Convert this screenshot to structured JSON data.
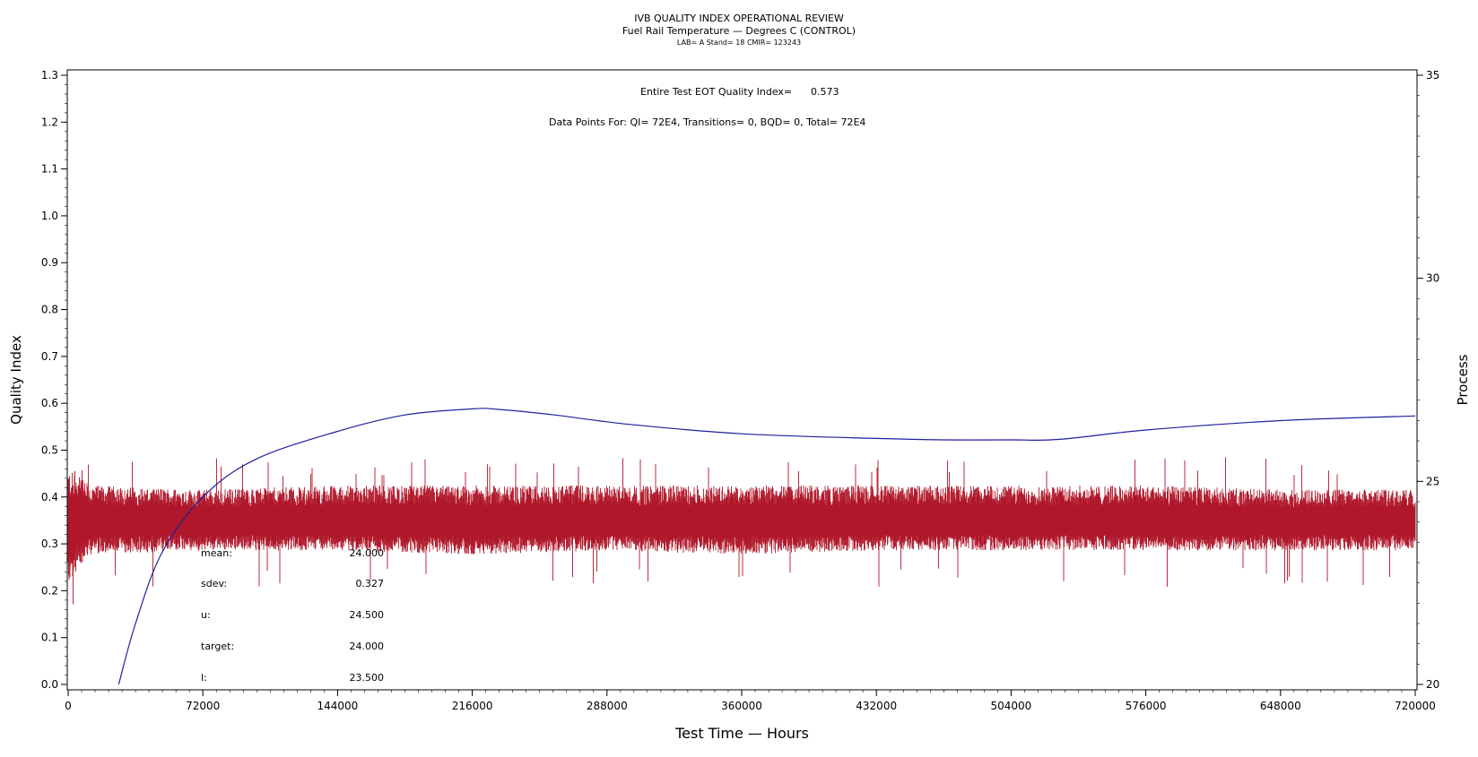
{
  "header": {
    "title": "IVB QUALITY INDEX OPERATIONAL REVIEW",
    "subtitle": "Fuel Rail Temperature — Degrees C (CONTROL)",
    "subsubtitle": "LAB= A Stand= 18 CMIR= 123243"
  },
  "annotations": {
    "eot_label": "Entire Test EOT Quality Index=",
    "eot_value": "0.573",
    "data_points": "Data Points For: QI=  72E4, Transitions=     0, BQD=     0, Total=  72E4"
  },
  "stats": [
    {
      "label": "mean:",
      "value": "24.000"
    },
    {
      "label": "sdev:",
      "value": "0.327"
    },
    {
      "label": "u:",
      "value": "24.500"
    },
    {
      "label": "target:",
      "value": "24.000"
    },
    {
      "label": "l:",
      "value": "23.500"
    }
  ],
  "chart_data": {
    "type": "line",
    "xlabel": "Test Time — Hours",
    "ylabel": "Quality Index",
    "y2label": "Process",
    "xlim": [
      0,
      720000
    ],
    "ylim": [
      0.0,
      1.3
    ],
    "y2lim": [
      20,
      35
    ],
    "xticks": [
      0,
      72000,
      144000,
      216000,
      288000,
      360000,
      432000,
      504000,
      576000,
      648000,
      720000
    ],
    "yticks": [
      0.0,
      0.1,
      0.2,
      0.3,
      0.4,
      0.5,
      0.6,
      0.7,
      0.8,
      0.9,
      1.0,
      1.1,
      1.2,
      1.3
    ],
    "y2ticks": [
      20,
      25,
      30,
      35
    ],
    "series": [
      {
        "axis": "left",
        "color": "#1f1f9e",
        "x": [
          27000,
          36000,
          50000,
          72000,
          100000,
          144000,
          180000,
          216000,
          230000,
          260000,
          300000,
          360000,
          432000,
          468000,
          504000,
          530000,
          576000,
          648000,
          720000
        ],
        "values": [
          0.0,
          0.13,
          0.28,
          0.4,
          0.48,
          0.54,
          0.575,
          0.588,
          0.587,
          0.575,
          0.555,
          0.535,
          0.525,
          0.522,
          0.522,
          0.523,
          0.543,
          0.563,
          0.573
        ]
      },
      {
        "axis": "right",
        "color": "#b0172a",
        "style": "dense noisy band",
        "x": [
          0,
          12000,
          72000,
          144000,
          216000,
          288000,
          360000,
          432000,
          504000,
          576000,
          648000,
          720000
        ],
        "band_low": [
          22.4,
          23.2,
          23.3,
          23.3,
          23.2,
          23.3,
          23.2,
          23.3,
          23.3,
          23.3,
          23.3,
          23.3
        ],
        "band_high": [
          25.3,
          24.9,
          24.8,
          24.9,
          24.9,
          24.9,
          24.9,
          24.9,
          24.9,
          24.9,
          24.8,
          24.8
        ],
        "mean": 24.0,
        "extreme_low": 21.5,
        "extreme_high": 25.6
      }
    ]
  }
}
